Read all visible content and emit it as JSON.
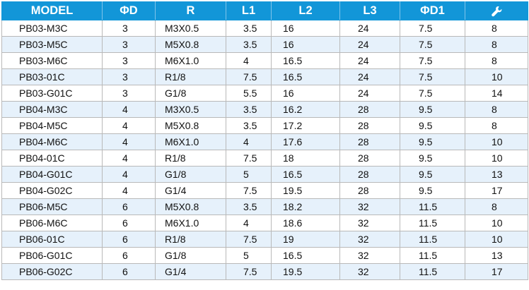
{
  "table": {
    "headers": [
      "MODEL",
      "ΦD",
      "R",
      "L1",
      "L2",
      "L3",
      "ΦD1"
    ],
    "last_header_icon": "wrench-icon",
    "rows": [
      [
        "PB03-M3C",
        "3",
        "M3X0.5",
        "3.5",
        "16",
        "24",
        "7.5",
        "8"
      ],
      [
        "PB03-M5C",
        "3",
        "M5X0.8",
        "3.5",
        "16",
        "24",
        "7.5",
        "8"
      ],
      [
        "PB03-M6C",
        "3",
        "M6X1.0",
        "4",
        "16.5",
        "24",
        "7.5",
        "8"
      ],
      [
        "PB03-01C",
        "3",
        "R1/8",
        "7.5",
        "16.5",
        "24",
        "7.5",
        "10"
      ],
      [
        "PB03-G01C",
        "3",
        "G1/8",
        "5.5",
        "16",
        "24",
        "7.5",
        "14"
      ],
      [
        "PB04-M3C",
        "4",
        "M3X0.5",
        "3.5",
        "16.2",
        "28",
        "9.5",
        "8"
      ],
      [
        "PB04-M5C",
        "4",
        "M5X0.8",
        "3.5",
        "17.2",
        "28",
        "9.5",
        "8"
      ],
      [
        "PB04-M6C",
        "4",
        "M6X1.0",
        "4",
        "17.6",
        "28",
        "9.5",
        "10"
      ],
      [
        "PB04-01C",
        "4",
        "R1/8",
        "7.5",
        "18",
        "28",
        "9.5",
        "10"
      ],
      [
        "PB04-G01C",
        "4",
        "G1/8",
        "5",
        "16.5",
        "28",
        "9.5",
        "13"
      ],
      [
        "PB04-G02C",
        "4",
        "G1/4",
        "7.5",
        "19.5",
        "28",
        "9.5",
        "17"
      ],
      [
        "PB06-M5C",
        "6",
        "M5X0.8",
        "3.5",
        "18.2",
        "32",
        "11.5",
        "8"
      ],
      [
        "PB06-M6C",
        "6",
        "M6X1.0",
        "4",
        "18.6",
        "32",
        "11.5",
        "10"
      ],
      [
        "PB06-01C",
        "6",
        "R1/8",
        "7.5",
        "19",
        "32",
        "11.5",
        "10"
      ],
      [
        "PB06-G01C",
        "6",
        "G1/8",
        "5",
        "16.5",
        "32",
        "11.5",
        "13"
      ],
      [
        "PB06-G02C",
        "6",
        "G1/4",
        "7.5",
        "19.5",
        "32",
        "11.5",
        "17"
      ]
    ]
  },
  "colors": {
    "header_bg": "#1296d8",
    "header_text": "#ffffff",
    "stripe": "#e6f1fb",
    "grid": "#b9b9b9"
  }
}
